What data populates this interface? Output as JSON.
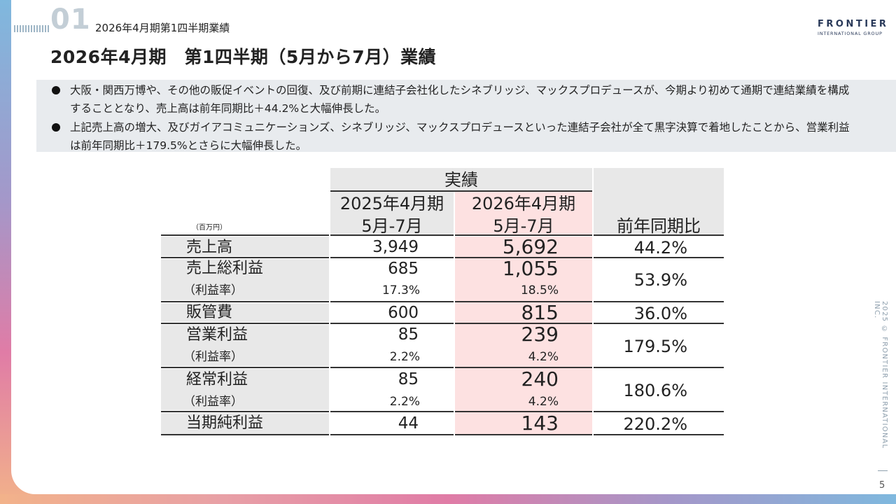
{
  "header": {
    "section_number": "01",
    "section_label": "2026年4月期第1四半期業績",
    "title": "2026年4月期　第1四半期（5月から7月）業績"
  },
  "logo": {
    "name": "FRONTIER",
    "subtitle": "INTERNATIONAL GROUP",
    "colors": [
      "#8fb4d8",
      "#b9a3d0",
      "#e88aa8",
      "#f0b39a"
    ]
  },
  "bullets": [
    "大阪・関西万博や、その他の販促イベントの回復、及び前期に連結子会社化したシネブリッジ、マックスプロデュースが、今期より初めて通期で連結業績を構成することとなり、売上高は前年同期比＋44.2%と大幅伸長した。",
    "上記売上高の増大、及びガイアコミュニケーションズ、シネブリッジ、マックスプロデュースといった連結子会社が全て黒字決算で着地したことから、営業利益は前年同期比＋179.5%とさらに大幅伸長した。"
  ],
  "table": {
    "unit": "（百万円）",
    "group_header": "実績",
    "col1": {
      "year": "2025年4月期",
      "period": "5月-7月"
    },
    "col2": {
      "year": "2026年4月期",
      "period": "5月-7月"
    },
    "yoy_header": "前年同期比",
    "rows": {
      "sales": {
        "label": "売上高",
        "v2025": "3,949",
        "v2026": "5,692",
        "yoy": "44.2%"
      },
      "gross": {
        "label": "売上総利益",
        "v2025": "685",
        "v2026": "1,055",
        "sub_label": "（利益率）",
        "s2025": "17.3%",
        "s2026": "18.5%",
        "yoy": "53.9%"
      },
      "sga": {
        "label": "販管費",
        "v2025": "600",
        "v2026": "815",
        "yoy": "36.0%"
      },
      "operating": {
        "label": "営業利益",
        "v2025": "85",
        "v2026": "239",
        "sub_label": "（利益率）",
        "s2025": "2.2%",
        "s2026": "4.2%",
        "yoy": "179.5%"
      },
      "ordinary": {
        "label": "経常利益",
        "v2025": "85",
        "v2026": "240",
        "sub_label": "（利益率）",
        "s2025": "2.2%",
        "s2026": "4.2%",
        "yoy": "180.6%"
      },
      "net": {
        "label": "当期純利益",
        "v2025": "44",
        "v2026": "143",
        "yoy": "220.2%"
      }
    }
  },
  "footer": {
    "copyright": "2025 © FRONTIER INTERNATIONAL INC.",
    "page_number": "5"
  },
  "colors": {
    "highlight_column": "#fde1e1",
    "header_gray": "#e8e8e8",
    "bullet_box": "#e8ebee",
    "section_number": "#c3ced6"
  }
}
